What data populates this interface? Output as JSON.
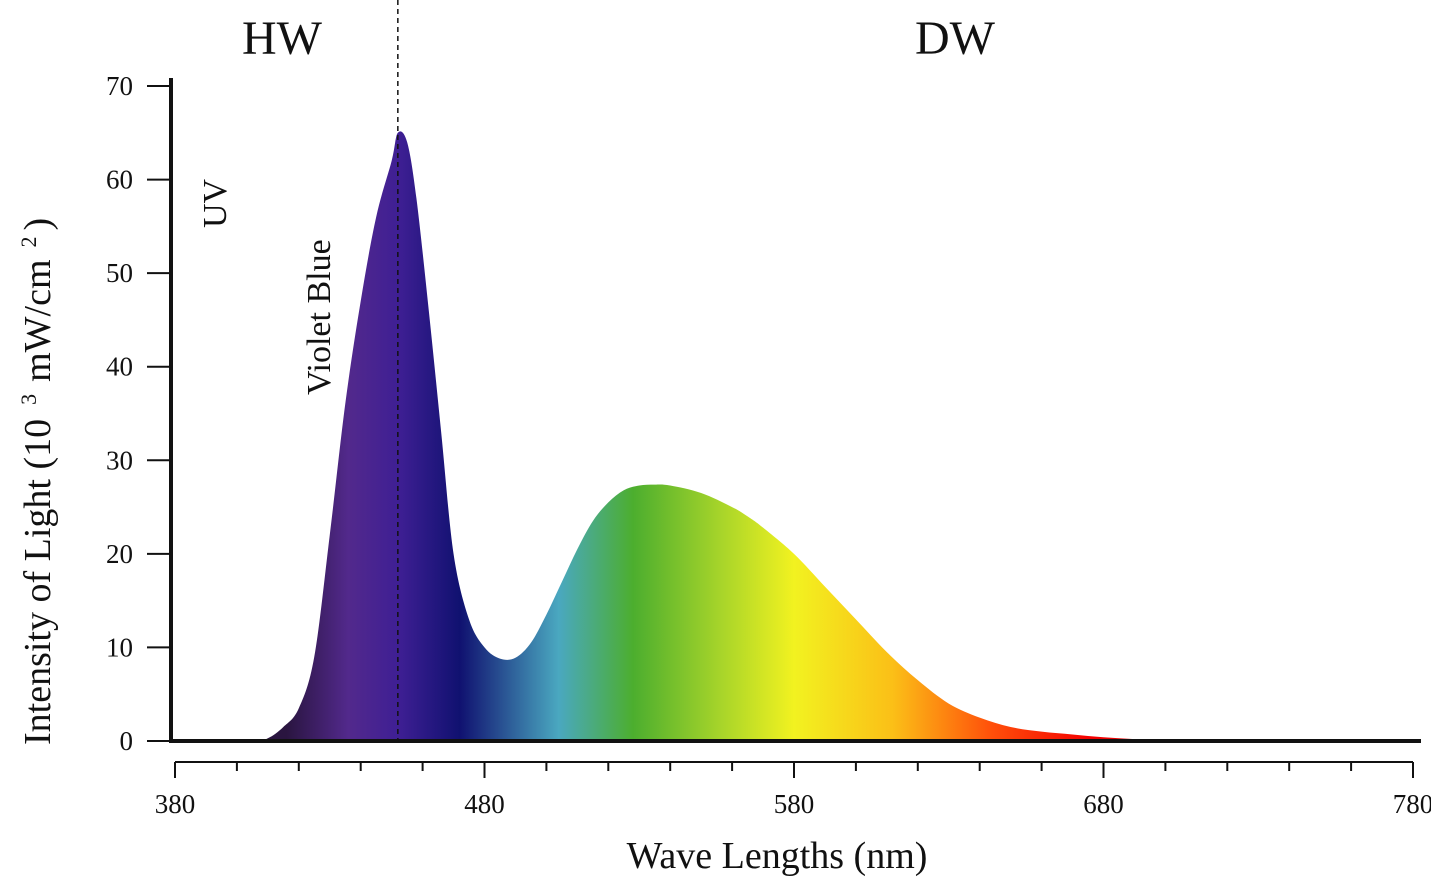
{
  "chart_data": {
    "type": "area",
    "title": "",
    "xlabel": "Wave Lengths (nm)",
    "ylabel": "Intensity of Light (10",
    "ylabel_exponent": "3",
    "ylabel_unit": "mW/cm",
    "ylabel_unit_exponent": "2",
    "ylabel_close": ")",
    "xlim": [
      380,
      780
    ],
    "ylim": [
      0,
      70
    ],
    "x_ticks": [
      380,
      480,
      580,
      680,
      780
    ],
    "y_ticks": [
      0,
      10,
      20,
      30,
      40,
      50,
      60,
      70
    ],
    "grid": false,
    "region_labels": {
      "left": "HW",
      "right": "DW"
    },
    "divider_x": 452,
    "band_labels": [
      "UV",
      "Violet Blue"
    ],
    "series": [
      {
        "x": [
          380,
          405,
          410,
          415,
          420,
          425,
          430,
          435,
          440,
          445,
          450,
          452,
          455,
          458,
          462,
          466,
          470,
          475,
          480,
          485,
          490,
          495,
          500,
          505,
          510,
          515,
          520,
          525,
          530,
          535,
          540,
          550,
          560,
          565,
          570,
          580,
          590,
          600,
          610,
          620,
          630,
          640,
          650,
          660,
          670,
          680,
          690,
          700,
          710,
          720,
          730,
          740,
          760,
          780
        ],
        "values": [
          0,
          0,
          0.3,
          1.5,
          3.5,
          9,
          22,
          36,
          47,
          56,
          62,
          65,
          64,
          58,
          46,
          33,
          20,
          13,
          10,
          8.8,
          8.9,
          10.5,
          13.5,
          17,
          20.5,
          23.5,
          25.5,
          26.8,
          27.3,
          27.4,
          27.3,
          26.5,
          25,
          24,
          22.8,
          20,
          16.5,
          13,
          9.5,
          6.5,
          4,
          2.5,
          1.5,
          1,
          0.7,
          0.4,
          0.2,
          0.1,
          0,
          0,
          0,
          0,
          0,
          0
        ]
      }
    ],
    "colors": {
      "spectrum_stops": [
        "#2a1540",
        "#52298c",
        "#3f1f94",
        "#101170",
        "#4aa8c0",
        "#4cae2e",
        "#a6d42a",
        "#f2f220",
        "#fbbf17",
        "#ff4f0a",
        "#f40000",
        "#a50f0f"
      ],
      "axis": "#111111"
    }
  }
}
